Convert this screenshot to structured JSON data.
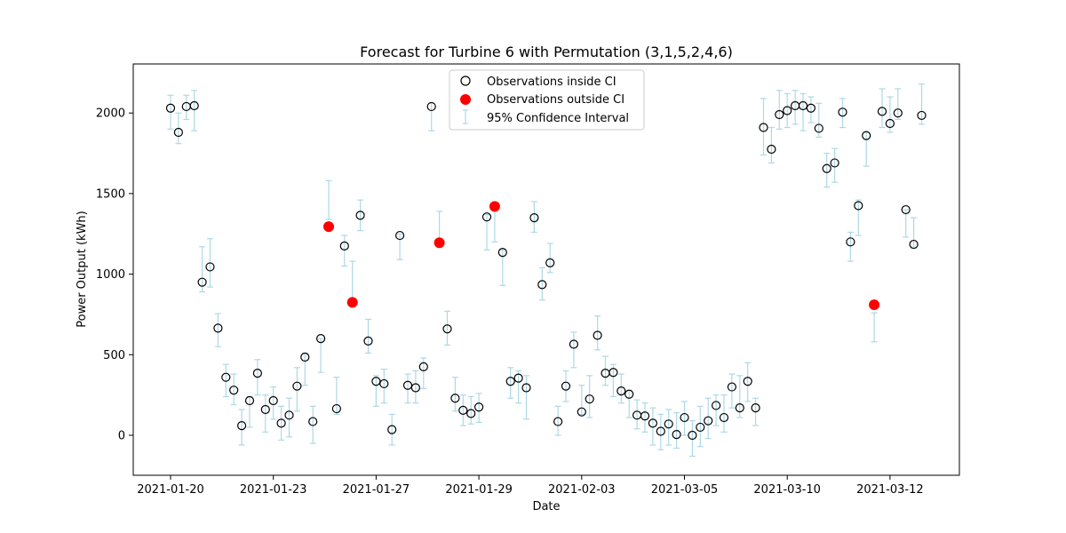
{
  "chart_data": {
    "type": "scatter",
    "title": "Forecast for Turbine 6 with Permutation (3,1,5,2,4,6)",
    "xlabel": "Date",
    "ylabel": "Power Output (kWh)",
    "x_tick_labels": [
      "2021-01-20",
      "2021-01-23",
      "2021-01-27",
      "2021-01-29",
      "2021-02-03",
      "2021-03-05",
      "2021-03-10",
      "2021-03-12"
    ],
    "y_ticks": [
      0,
      500,
      1000,
      1500,
      2000
    ],
    "ylim": [
      -250,
      2300
    ],
    "x_axis_note": "categorical sequence of 96 observations; tick labels printed at positions 0, 13, 26, 39, 52, 65, 78, 91",
    "legend": {
      "placement": "top-center",
      "inside_label": "Observations inside CI",
      "outside_label": "Observations outside CI",
      "ci_label": "95% Confidence Interval"
    },
    "colors": {
      "inside_edge": "#000000",
      "outside": "#ff0000",
      "ci": "#add8e6"
    },
    "series": [
      {
        "name": "Observations inside CI",
        "points": [
          [
            0,
            2030,
            1900,
            2110
          ],
          [
            1,
            1880,
            1810,
            2000
          ],
          [
            2,
            2040,
            1960,
            2110
          ],
          [
            3,
            2045,
            1890,
            2140
          ],
          [
            4,
            950,
            890,
            1170
          ],
          [
            5,
            1045,
            920,
            1220
          ],
          [
            6,
            665,
            550,
            755
          ],
          [
            7,
            360,
            240,
            440
          ],
          [
            8,
            280,
            190,
            380
          ],
          [
            9,
            60,
            -60,
            160
          ],
          [
            10,
            215,
            50,
            240
          ],
          [
            11,
            385,
            250,
            470
          ],
          [
            12,
            160,
            20,
            250
          ],
          [
            13,
            215,
            100,
            300
          ],
          [
            14,
            75,
            -30,
            180
          ],
          [
            15,
            125,
            -10,
            230
          ],
          [
            16,
            305,
            150,
            420
          ],
          [
            17,
            485,
            310,
            510
          ],
          [
            18,
            85,
            -50,
            180
          ],
          [
            19,
            600,
            390,
            600
          ],
          [
            21,
            165,
            130,
            360
          ],
          [
            22,
            1175,
            1050,
            1240
          ],
          [
            24,
            1365,
            1270,
            1460
          ],
          [
            25,
            585,
            510,
            720
          ],
          [
            26,
            335,
            180,
            370
          ],
          [
            27,
            320,
            200,
            410
          ],
          [
            28,
            35,
            -60,
            130
          ],
          [
            29,
            1240,
            1090,
            1250
          ],
          [
            30,
            310,
            200,
            380
          ],
          [
            31,
            295,
            200,
            400
          ],
          [
            32,
            425,
            290,
            480
          ],
          [
            33,
            2040,
            1890,
            2060
          ],
          [
            35,
            660,
            560,
            770
          ],
          [
            36,
            230,
            150,
            360
          ],
          [
            37,
            155,
            60,
            250
          ],
          [
            38,
            135,
            70,
            240
          ],
          [
            39,
            175,
            80,
            260
          ],
          [
            40,
            1355,
            1150,
            1370
          ],
          [
            42,
            1135,
            930,
            1150
          ],
          [
            43,
            335,
            230,
            420
          ],
          [
            44,
            355,
            200,
            400
          ],
          [
            45,
            295,
            100,
            370
          ],
          [
            46,
            1350,
            1260,
            1450
          ],
          [
            47,
            935,
            840,
            1040
          ],
          [
            48,
            1070,
            1010,
            1190
          ],
          [
            49,
            85,
            0,
            180
          ],
          [
            50,
            305,
            210,
            400
          ],
          [
            51,
            565,
            420,
            640
          ],
          [
            52,
            145,
            130,
            310
          ],
          [
            53,
            225,
            110,
            370
          ],
          [
            54,
            620,
            530,
            740
          ],
          [
            55,
            385,
            310,
            490
          ],
          [
            56,
            390,
            240,
            440
          ],
          [
            57,
            275,
            200,
            380
          ],
          [
            58,
            255,
            110,
            280
          ],
          [
            59,
            125,
            40,
            220
          ],
          [
            60,
            120,
            20,
            200
          ],
          [
            61,
            75,
            -60,
            170
          ],
          [
            62,
            25,
            -90,
            130
          ],
          [
            63,
            70,
            -60,
            160
          ],
          [
            64,
            5,
            -80,
            140
          ],
          [
            65,
            110,
            0,
            210
          ],
          [
            66,
            0,
            -130,
            90
          ],
          [
            67,
            50,
            -70,
            180
          ],
          [
            68,
            90,
            -20,
            230
          ],
          [
            69,
            185,
            60,
            250
          ],
          [
            70,
            110,
            20,
            250
          ],
          [
            71,
            300,
            170,
            380
          ],
          [
            72,
            170,
            110,
            370
          ],
          [
            73,
            335,
            210,
            450
          ],
          [
            74,
            170,
            60,
            230
          ],
          [
            75,
            1910,
            1740,
            2090
          ],
          [
            76,
            1775,
            1690,
            1910
          ],
          [
            77,
            1990,
            1900,
            2140
          ],
          [
            78,
            2015,
            1910,
            2120
          ],
          [
            79,
            2045,
            1930,
            2140
          ],
          [
            80,
            2045,
            1890,
            2120
          ],
          [
            81,
            2030,
            1940,
            2100
          ],
          [
            82,
            1905,
            1850,
            2060
          ],
          [
            83,
            1655,
            1540,
            1750
          ],
          [
            84,
            1690,
            1570,
            1780
          ],
          [
            85,
            2005,
            1910,
            2090
          ],
          [
            86,
            1200,
            1080,
            1260
          ],
          [
            87,
            1425,
            1240,
            1460
          ],
          [
            88,
            1860,
            1670,
            1880
          ],
          [
            90,
            2010,
            1910,
            2150
          ],
          [
            91,
            1935,
            1880,
            2100
          ],
          [
            92,
            2000,
            1960,
            2150
          ],
          [
            93,
            1400,
            1230,
            1400
          ],
          [
            94,
            1185,
            1160,
            1350
          ],
          [
            95,
            1985,
            1930,
            2180
          ]
        ]
      },
      {
        "name": "Observations outside CI",
        "points": [
          [
            20,
            1295,
            1340,
            1580
          ],
          [
            23,
            825,
            850,
            1080
          ],
          [
            34,
            1195,
            1210,
            1390
          ],
          [
            41,
            1420,
            1200,
            1400
          ],
          [
            89,
            810,
            580,
            760
          ]
        ]
      }
    ]
  }
}
